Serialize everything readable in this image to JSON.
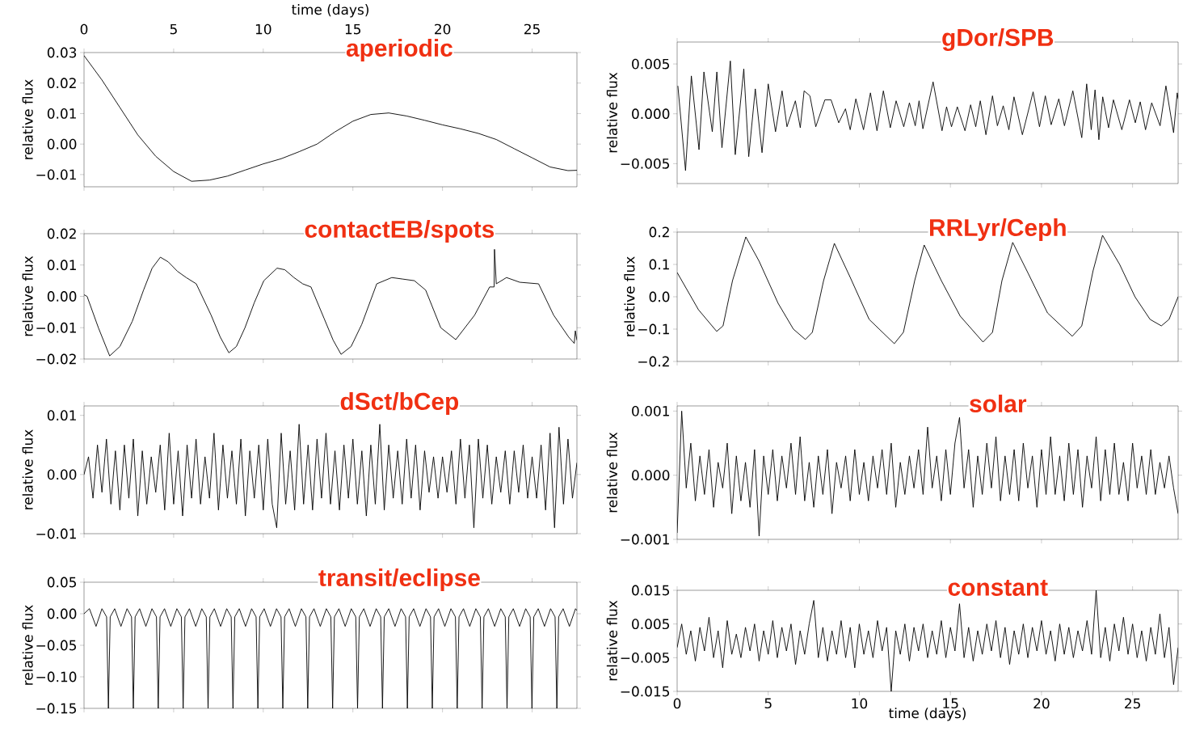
{
  "chart_data": [
    {
      "type": "line",
      "title": "aperiodic",
      "ylabel": "relative flux",
      "xlabel": "time (days)",
      "xlim": [
        0,
        27.5
      ],
      "xticks": [
        0,
        5,
        10,
        15,
        20,
        25
      ],
      "ylim": [
        -0.014,
        0.03
      ],
      "yticks": [
        {
          "value": -0.01,
          "label": "−0.01"
        },
        {
          "value": 0,
          "label": "0.00"
        },
        0.01,
        0.02,
        0.03
      ],
      "color": "#000000",
      "x": [
        0,
        1,
        2,
        3,
        4,
        5,
        6,
        7,
        8,
        9,
        10,
        11,
        12,
        13,
        14,
        15,
        16,
        17,
        18,
        19,
        20,
        21,
        22,
        23,
        24,
        25,
        26,
        27,
        27.5
      ],
      "values": [
        0.029,
        0.021,
        0.012,
        0.003,
        -0.004,
        -0.009,
        -0.0122,
        -0.0118,
        -0.0105,
        -0.0085,
        -0.0065,
        -0.0048,
        -0.0025,
        0,
        0.004,
        0.0075,
        0.0097,
        0.0102,
        0.0092,
        0.0078,
        0.0063,
        0.005,
        0.0035,
        0.0015,
        -0.0015,
        -0.0045,
        -0.0075,
        -0.0087,
        -0.0086
      ]
    },
    {
      "type": "line",
      "title": "gDor/SPB",
      "ylabel": "relative flux",
      "xlim": [
        0,
        27.5
      ],
      "xticks": [
        0,
        5,
        10,
        15,
        20,
        25
      ],
      "tick_labels": "y",
      "ylim": [
        -0.007,
        0.0072
      ],
      "yticks": [
        {
          "value": -0.005,
          "label": "−0.005"
        },
        {
          "value": 0,
          "label": "0.000"
        },
        0.005
      ],
      "color": "#000000",
      "x": [
        0.04,
        0.46,
        0.78,
        1.2,
        1.47,
        1.93,
        2.18,
        2.46,
        2.92,
        3.19,
        3.66,
        3.93,
        4.29,
        4.66,
        5.0,
        5.4,
        5.76,
        6.03,
        6.49,
        6.76,
        6.97,
        7.29,
        7.61,
        8.11,
        8.45,
        8.87,
        9.24,
        9.5,
        9.81,
        10.23,
        10.61,
        10.97,
        11.32,
        11.7,
        12.02,
        12.44,
        12.75,
        13.07,
        13.28,
        13.49,
        14.05,
        14.54,
        14.79,
        15.06,
        15.38,
        15.8,
        16.11,
        16.39,
        16.64,
        16.95,
        17.31,
        17.58,
        17.9,
        18.21,
        18.49,
        18.95,
        19.54,
        19.89,
        20.21,
        20.53,
        20.95,
        21.26,
        21.72,
        22.21,
        22.48,
        22.73,
        22.94,
        23.15,
        23.36,
        23.68,
        23.95,
        24.41,
        24.83,
        25.15,
        25.42,
        25.71,
        26.05,
        26.51,
        26.83,
        27.25,
        27.45,
        27.5
      ],
      "values": [
        0.0028,
        -0.0057,
        0.0038,
        -0.0036,
        0.0042,
        -0.0018,
        0.0042,
        -0.0034,
        0.0053,
        -0.0041,
        0.0045,
        -0.0043,
        0.0025,
        -0.0039,
        0.003,
        -0.0018,
        0.0023,
        -0.0013,
        0.0013,
        -0.0014,
        0.0023,
        0.0018,
        -0.0013,
        0.0014,
        0.0014,
        -0.0009,
        0.0005,
        -0.0016,
        0.0015,
        -0.0016,
        0.0021,
        -0.0017,
        0.0023,
        -0.0014,
        0.0013,
        -0.0013,
        0.0011,
        -0.0012,
        0.0013,
        -0.0015,
        0.0032,
        -0.0017,
        0.0007,
        -0.0013,
        0.0007,
        -0.0017,
        0.0009,
        -0.0013,
        0.0013,
        -0.0021,
        0.0018,
        -0.0012,
        0.0008,
        -0.0016,
        0.0017,
        -0.0021,
        0.0022,
        -0.0013,
        0.0018,
        -0.0011,
        0.0015,
        -0.0012,
        0.0023,
        -0.0024,
        0.003,
        -0.0016,
        0.0024,
        -0.0026,
        0.0017,
        -0.0014,
        0.0014,
        -0.0016,
        0.0014,
        -0.0009,
        0.0012,
        -0.0016,
        0.0011,
        -0.0012,
        0.0028,
        -0.0019,
        0.0021,
        0.0015
      ]
    },
    {
      "type": "line",
      "title": "contactEB/spots",
      "ylabel": "relative flux",
      "xlim": [
        0,
        27.5
      ],
      "xticks": [
        0,
        5,
        10,
        15,
        20,
        25
      ],
      "tick_labels": "y",
      "ylim": [
        -0.02,
        0.02
      ],
      "yticks": [
        {
          "value": -0.02,
          "label": "−0.02"
        },
        {
          "value": -0.01,
          "label": "−0.01"
        },
        {
          "value": 0,
          "label": "0.00"
        },
        0.01,
        0.02
      ],
      "color": "#000000",
      "x": [
        0,
        0.17,
        0.8,
        1.43,
        2.0,
        2.69,
        3.32,
        3.8,
        4.26,
        4.7,
        5.21,
        5.7,
        6.26,
        7.09,
        7.6,
        8.08,
        8.5,
        8.98,
        9.5,
        10.03,
        10.77,
        11.2,
        11.71,
        12.2,
        12.66,
        13.39,
        13.9,
        14.34,
        14.9,
        15.49,
        16.33,
        17.17,
        17.8,
        18.43,
        19.06,
        19.9,
        20.74,
        21.79,
        22.63,
        22.88,
        22.9,
        23.0,
        23.57,
        24.31,
        25.36,
        26.2,
        27.04,
        27.35,
        27.41,
        27.5
      ],
      "values": [
        0.0005,
        0,
        -0.01,
        -0.019,
        -0.016,
        -0.008,
        0.002,
        0.009,
        0.0125,
        0.011,
        0.008,
        0.006,
        0.004,
        -0.006,
        -0.013,
        -0.018,
        -0.016,
        -0.01,
        -0.002,
        0.005,
        0.009,
        0.0085,
        0.006,
        0.004,
        0.003,
        -0.007,
        -0.014,
        -0.0185,
        -0.016,
        -0.009,
        0.004,
        0.006,
        0.0055,
        0.005,
        0.002,
        -0.01,
        -0.0138,
        -0.006,
        0.003,
        0.003,
        0.015,
        0.004,
        0.006,
        0.0045,
        0.004,
        -0.006,
        -0.013,
        -0.015,
        -0.011,
        -0.014
      ]
    },
    {
      "type": "line",
      "title": "RRLyr/Ceph",
      "ylabel": "relative flux",
      "xlim": [
        0,
        27.5
      ],
      "xticks": [
        0,
        5,
        10,
        15,
        20,
        25
      ],
      "tick_labels": "y",
      "ylim": [
        -0.2,
        0.2
      ],
      "yticks": [
        {
          "value": -0.2,
          "label": "−0.2"
        },
        {
          "value": -0.1,
          "label": "−0.1"
        },
        {
          "value": 0,
          "label": "0.0"
        },
        0.1,
        0.2
      ],
      "color": "#000000",
      "x": [
        0,
        1.17,
        2.17,
        2.52,
        3.04,
        3.77,
        4.5,
        5.54,
        6.38,
        7.04,
        7.42,
        8.04,
        8.63,
        9.5,
        10.54,
        11.92,
        12.42,
        13.04,
        13.56,
        14.5,
        15.54,
        16.79,
        17.31,
        17.83,
        18.42,
        19.29,
        20.33,
        21.69,
        22.21,
        22.83,
        23.35,
        24.29,
        25.13,
        25.96,
        26.58,
        27.0,
        27.5
      ],
      "values": [
        0.075,
        -0.04,
        -0.107,
        -0.09,
        0.05,
        0.185,
        0.11,
        -0.02,
        -0.1,
        -0.132,
        -0.11,
        0.05,
        0.165,
        0.06,
        -0.07,
        -0.145,
        -0.11,
        0.05,
        0.16,
        0.05,
        -0.06,
        -0.14,
        -0.11,
        0.05,
        0.168,
        0.07,
        -0.05,
        -0.122,
        -0.09,
        0.08,
        0.19,
        0.1,
        0,
        -0.07,
        -0.09,
        -0.07,
        0
      ]
    },
    {
      "type": "line",
      "title": "dSct/bCep",
      "ylabel": "relative flux",
      "xlim": [
        0,
        27.5
      ],
      "xticks": [
        0,
        5,
        10,
        15,
        20,
        25
      ],
      "tick_labels": "y",
      "ylim": [
        -0.01,
        0.0116
      ],
      "yticks": [
        {
          "value": -0.01,
          "label": "−0.01"
        },
        {
          "value": 0,
          "label": "0.00"
        },
        0.01
      ],
      "color": "#000000",
      "x": [
        0,
        0.25,
        0.5,
        0.75,
        1,
        1.25,
        1.5,
        1.75,
        2,
        2.25,
        2.5,
        2.75,
        3,
        3.25,
        3.5,
        3.75,
        4,
        4.25,
        4.5,
        4.75,
        5,
        5.25,
        5.5,
        5.75,
        6,
        6.25,
        6.5,
        6.75,
        7,
        7.25,
        7.5,
        7.75,
        8,
        8.25,
        8.5,
        8.75,
        9,
        9.25,
        9.5,
        9.75,
        10,
        10.25,
        10.5,
        10.75,
        11,
        11.25,
        11.5,
        11.75,
        12,
        12.25,
        12.5,
        12.75,
        13,
        13.25,
        13.5,
        13.75,
        14,
        14.25,
        14.5,
        14.75,
        15,
        15.25,
        15.5,
        15.75,
        16,
        16.25,
        16.5,
        16.75,
        17,
        17.25,
        17.5,
        17.75,
        18,
        18.25,
        18.5,
        18.75,
        19,
        19.25,
        19.5,
        19.75,
        20,
        20.25,
        20.5,
        20.75,
        21,
        21.25,
        21.5,
        21.75,
        22,
        22.25,
        22.5,
        22.75,
        23,
        23.25,
        23.5,
        23.75,
        24,
        24.25,
        24.5,
        24.75,
        25,
        25.25,
        25.5,
        25.75,
        26,
        26.25,
        26.5,
        26.75,
        27,
        27.25,
        27.5
      ],
      "values": [
        0,
        0.003,
        -0.004,
        0.005,
        -0.003,
        0.006,
        -0.005,
        0.004,
        -0.006,
        0.005,
        -0.004,
        0.006,
        -0.007,
        0.004,
        -0.005,
        0.003,
        -0.003,
        0.005,
        -0.006,
        0.007,
        -0.005,
        0.004,
        -0.007,
        0.005,
        -0.004,
        0.006,
        -0.005,
        0.003,
        -0.004,
        0.007,
        -0.006,
        0.005,
        -0.004,
        0.004,
        -0.005,
        0.006,
        -0.007,
        0.004,
        -0.004,
        0.005,
        -0.006,
        0.006,
        -0.005,
        -0.009,
        0.007,
        -0.005,
        0.004,
        -0.006,
        0.0085,
        -0.005,
        0.005,
        -0.006,
        0.006,
        -0.004,
        0.007,
        -0.005,
        0.004,
        -0.006,
        0.005,
        -0.004,
        0.006,
        -0.005,
        0.004,
        -0.007,
        0.005,
        -0.005,
        0.0085,
        -0.006,
        0.005,
        -0.004,
        0.004,
        -0.005,
        0.006,
        -0.004,
        0.005,
        -0.006,
        0.004,
        -0.003,
        0.003,
        -0.004,
        0.003,
        -0.003,
        0.004,
        -0.005,
        0.006,
        -0.004,
        0.005,
        -0.009,
        0.006,
        -0.004,
        0.005,
        -0.005,
        0.003,
        -0.003,
        0.004,
        -0.005,
        0.004,
        -0.003,
        0.005,
        -0.004,
        0.003,
        -0.004,
        0.005,
        -0.006,
        0.007,
        -0.009,
        0.008,
        -0.005,
        0.006,
        -0.004,
        0.002
      ]
    },
    {
      "type": "line",
      "title": "solar",
      "ylabel": "relative flux",
      "xlim": [
        0,
        27.5
      ],
      "xticks": [
        0,
        5,
        10,
        15,
        20,
        25
      ],
      "tick_labels": "y",
      "ylim": [
        -0.001,
        0.00108
      ],
      "yticks": [
        {
          "value": -0.001,
          "label": "−0.001"
        },
        {
          "value": 0,
          "label": "0.000"
        },
        0.001
      ],
      "color": "#000000",
      "x": [
        0,
        0.25,
        0.5,
        0.75,
        1,
        1.25,
        1.5,
        1.75,
        2,
        2.25,
        2.5,
        2.75,
        3,
        3.25,
        3.5,
        3.75,
        4,
        4.25,
        4.5,
        4.75,
        5,
        5.25,
        5.5,
        5.75,
        6,
        6.25,
        6.5,
        6.75,
        7,
        7.25,
        7.5,
        7.75,
        8,
        8.25,
        8.5,
        8.75,
        9,
        9.25,
        9.5,
        9.75,
        10,
        10.25,
        10.5,
        10.75,
        11,
        11.25,
        11.5,
        11.75,
        12,
        12.25,
        12.5,
        12.75,
        13,
        13.25,
        13.5,
        13.75,
        14,
        14.25,
        14.5,
        14.75,
        15,
        15.25,
        15.5,
        15.75,
        16,
        16.25,
        16.5,
        16.75,
        17,
        17.25,
        17.5,
        17.75,
        18,
        18.25,
        18.5,
        18.75,
        19,
        19.25,
        19.5,
        19.75,
        20,
        20.25,
        20.5,
        20.75,
        21,
        21.25,
        21.5,
        21.75,
        22,
        22.25,
        22.5,
        22.75,
        23,
        23.25,
        23.5,
        23.75,
        24,
        24.25,
        24.5,
        24.75,
        25,
        25.25,
        25.5,
        25.75,
        26,
        26.25,
        26.5,
        26.75,
        27,
        27.25,
        27.5
      ],
      "values": [
        -0.0009,
        0.001,
        -0.0002,
        0.0005,
        -0.0004,
        0.0003,
        -0.0003,
        0.0004,
        -0.0005,
        0.0002,
        -0.0002,
        0.0005,
        -0.0006,
        0.0003,
        -0.0004,
        0.0002,
        -0.0005,
        0.0004,
        -0.00095,
        0.0003,
        -0.0003,
        0.0004,
        -0.0004,
        0.0003,
        -0.0002,
        0.0005,
        -0.0003,
        0.0006,
        -0.0004,
        0.0002,
        -0.0005,
        0.0003,
        -0.0003,
        0.0004,
        -0.0006,
        0.0002,
        -0.0002,
        0.0003,
        -0.0004,
        0.0004,
        -0.0003,
        0.0002,
        -0.0004,
        0.0003,
        -0.0002,
        0.0004,
        -0.0003,
        0.0005,
        -0.0005,
        0.0002,
        -0.0003,
        0.0003,
        -0.0002,
        0.0004,
        -0.0003,
        0.00075,
        -0.0002,
        0.0003,
        -0.0004,
        0.0004,
        -0.0003,
        0.0005,
        0.0009,
        -0.0002,
        0.0004,
        -0.0005,
        0.0003,
        -0.0003,
        0.0005,
        -0.0002,
        0.0006,
        -0.0004,
        0.0003,
        -0.0003,
        0.0004,
        -0.0004,
        0.0005,
        -0.0002,
        0.0003,
        -0.0005,
        0.0004,
        -0.0003,
        0.0006,
        -0.0003,
        0.0003,
        -0.0004,
        0.0005,
        -0.0003,
        0.0004,
        -0.0005,
        0.0003,
        -0.0002,
        0.0006,
        -0.0004,
        0.0004,
        -0.0003,
        0.0005,
        -0.0003,
        0.0002,
        -0.0004,
        0.0005,
        -0.0002,
        0.0003,
        -0.0003,
        0.0004,
        -0.0003,
        0.0002,
        -0.0002,
        0.0003,
        -0.0002,
        -0.0006
      ]
    },
    {
      "type": "line",
      "title": "transit/eclipse",
      "ylabel": "relative flux",
      "xlim": [
        0,
        27.5
      ],
      "xticks": [
        0,
        5,
        10,
        15,
        20,
        25
      ],
      "tick_labels": "y",
      "ylim": [
        -0.15,
        0.05
      ],
      "yticks": [
        {
          "value": -0.15,
          "label": "−0.15"
        },
        {
          "value": -0.1,
          "label": "−0.10"
        },
        {
          "value": -0.05,
          "label": "−0.05"
        },
        {
          "value": 0,
          "label": "0.00"
        },
        0.05
      ],
      "color": "#000000",
      "x": [
        0,
        0.3,
        0.67,
        1.0,
        1.26,
        1.36,
        1.46,
        1.71,
        2.06,
        2.4,
        2.65,
        2.75,
        2.85,
        3.1,
        3.45,
        3.79,
        4.04,
        4.14,
        4.24,
        4.49,
        4.84,
        5.18,
        5.43,
        5.53,
        5.63,
        5.88,
        6.23,
        6.57,
        6.82,
        6.92,
        7.02,
        7.27,
        7.62,
        7.96,
        8.21,
        8.31,
        8.41,
        8.66,
        9.01,
        9.35,
        9.6,
        9.7,
        9.8,
        10.05,
        10.4,
        10.74,
        10.99,
        11.09,
        11.19,
        11.44,
        11.79,
        12.13,
        12.38,
        12.48,
        12.58,
        12.83,
        13.18,
        13.52,
        13.77,
        13.87,
        13.97,
        14.22,
        14.57,
        14.91,
        15.16,
        15.26,
        15.36,
        15.61,
        15.96,
        16.3,
        16.55,
        16.65,
        16.75,
        17.0,
        17.35,
        17.69,
        17.94,
        18.04,
        18.14,
        18.39,
        18.74,
        19.08,
        19.33,
        19.43,
        19.53,
        19.78,
        20.13,
        20.47,
        20.72,
        20.82,
        20.92,
        21.17,
        21.52,
        21.86,
        22.11,
        22.21,
        22.31,
        22.56,
        22.91,
        23.25,
        23.5,
        23.6,
        23.7,
        23.95,
        24.3,
        24.64,
        24.89,
        24.99,
        25.09,
        25.34,
        25.69,
        26.03,
        26.28,
        26.38,
        26.48,
        26.73,
        27.08,
        27.42,
        27.5
      ],
      "values": [
        0,
        0.008,
        -0.02,
        0.008,
        -0.005,
        -0.15,
        -0.005,
        0.008,
        -0.02,
        0.008,
        -0.005,
        -0.15,
        -0.005,
        0.008,
        -0.02,
        0.008,
        -0.005,
        -0.15,
        -0.005,
        0.008,
        -0.02,
        0.008,
        -0.005,
        -0.15,
        -0.005,
        0.008,
        -0.02,
        0.008,
        -0.005,
        -0.15,
        -0.005,
        0.008,
        -0.02,
        0.008,
        -0.005,
        -0.15,
        -0.005,
        0.008,
        -0.02,
        0.008,
        -0.005,
        -0.15,
        -0.005,
        0.008,
        -0.02,
        0.008,
        -0.005,
        -0.15,
        -0.005,
        0.008,
        -0.02,
        0.008,
        -0.005,
        -0.15,
        -0.005,
        0.008,
        -0.02,
        0.008,
        -0.005,
        -0.15,
        -0.005,
        0.008,
        -0.02,
        0.008,
        -0.005,
        -0.15,
        -0.005,
        0.008,
        -0.02,
        0.008,
        -0.005,
        -0.15,
        -0.005,
        0.008,
        -0.02,
        0.008,
        -0.005,
        -0.15,
        -0.005,
        0.008,
        -0.02,
        0.008,
        -0.005,
        -0.15,
        -0.005,
        0.008,
        -0.02,
        0.008,
        -0.005,
        -0.15,
        -0.005,
        0.008,
        -0.02,
        0.008,
        -0.005,
        -0.15,
        -0.005,
        0.008,
        -0.02,
        0.008,
        -0.005,
        -0.15,
        -0.005,
        0.008,
        -0.02,
        0.008,
        -0.005,
        -0.15,
        -0.005,
        0.008,
        -0.02,
        0.008,
        -0.005,
        -0.15,
        -0.005,
        0.008,
        -0.02,
        0.008,
        0.005
      ]
    },
    {
      "type": "line",
      "title": "constant",
      "ylabel": "relative flux",
      "xlabel": "time (days)",
      "xlim": [
        0,
        27.5
      ],
      "xticks": [
        0,
        5,
        10,
        15,
        20,
        25
      ],
      "ylim": [
        -0.015,
        0.015
      ],
      "yticks": [
        {
          "value": -0.015,
          "label": "−0.015"
        },
        {
          "value": -0.005,
          "label": "−0.005"
        },
        0.005,
        0.015
      ],
      "color": "#000000",
      "x": [
        0,
        0.25,
        0.5,
        0.75,
        1,
        1.25,
        1.5,
        1.75,
        2,
        2.25,
        2.5,
        2.75,
        3,
        3.25,
        3.5,
        3.75,
        4,
        4.25,
        4.5,
        4.75,
        5,
        5.25,
        5.5,
        5.75,
        6,
        6.25,
        6.5,
        6.75,
        7,
        7.25,
        7.5,
        7.75,
        8,
        8.25,
        8.5,
        8.75,
        9,
        9.25,
        9.5,
        9.75,
        10,
        10.25,
        10.5,
        10.75,
        11,
        11.25,
        11.5,
        11.75,
        12,
        12.25,
        12.5,
        12.75,
        13,
        13.25,
        13.5,
        13.75,
        14,
        14.25,
        14.5,
        14.75,
        15,
        15.25,
        15.5,
        15.75,
        16,
        16.25,
        16.5,
        16.75,
        17,
        17.25,
        17.5,
        17.75,
        18,
        18.25,
        18.5,
        18.75,
        19,
        19.25,
        19.5,
        19.75,
        20,
        20.25,
        20.5,
        20.75,
        21,
        21.25,
        21.5,
        21.75,
        22,
        22.25,
        22.5,
        22.75,
        23,
        23.25,
        23.5,
        23.75,
        24,
        24.25,
        24.5,
        24.75,
        25,
        25.25,
        25.5,
        25.75,
        26,
        26.25,
        26.5,
        26.75,
        27,
        27.25,
        27.5
      ],
      "values": [
        -0.002,
        0.005,
        -0.004,
        0.003,
        -0.006,
        0.004,
        -0.003,
        0.007,
        -0.005,
        0.003,
        -0.008,
        0.006,
        -0.004,
        0.002,
        -0.005,
        0.004,
        -0.003,
        0.005,
        -0.006,
        0.003,
        -0.004,
        0.006,
        -0.005,
        0.004,
        -0.003,
        0.005,
        -0.007,
        0.003,
        -0.004,
        0.005,
        0.012,
        -0.005,
        0.004,
        -0.006,
        0.003,
        -0.004,
        0.006,
        -0.005,
        0.004,
        -0.008,
        0.005,
        -0.004,
        0.003,
        -0.005,
        0.006,
        -0.003,
        0.004,
        -0.015,
        0.003,
        -0.004,
        0.005,
        -0.006,
        0.004,
        -0.003,
        0.005,
        -0.005,
        0.003,
        -0.004,
        0.006,
        -0.005,
        0.004,
        -0.003,
        0.011,
        -0.005,
        0.004,
        -0.006,
        0.003,
        -0.004,
        0.005,
        -0.003,
        0.006,
        -0.005,
        0.004,
        -0.007,
        0.003,
        -0.004,
        0.005,
        -0.005,
        0.004,
        -0.003,
        0.006,
        -0.004,
        0.003,
        -0.006,
        0.005,
        -0.004,
        0.004,
        -0.005,
        0.003,
        -0.003,
        0.006,
        -0.004,
        0.015,
        -0.005,
        0.004,
        -0.006,
        0.005,
        -0.003,
        0.007,
        -0.004,
        0.005,
        -0.005,
        0.003,
        -0.006,
        0.004,
        -0.004,
        0.008,
        -0.005,
        0.004,
        -0.013,
        -0.002
      ]
    }
  ]
}
